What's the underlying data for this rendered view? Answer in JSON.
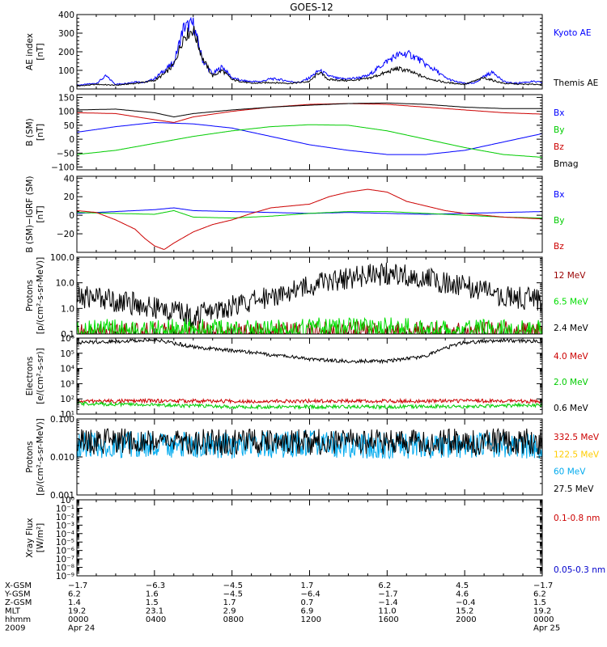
{
  "title": "GOES-12",
  "chart_data": [
    {
      "type": "line",
      "name": "ae",
      "ylabel_lines": [
        "AE index",
        "[nT]"
      ],
      "yscale": "linear",
      "ylim": [
        0,
        400
      ],
      "yticks": [
        0,
        100,
        200,
        300,
        400
      ],
      "ytick_labels": [
        "0",
        "100",
        "200",
        "300",
        "400"
      ],
      "series": [
        {
          "name": "Kyoto AE",
          "color": "#0000ff",
          "x": [
            0,
            0.5,
            1.0,
            1.5,
            2.0,
            2.5,
            3.0,
            3.5,
            4.0,
            4.5,
            5.0,
            5.5,
            6.0,
            6.5,
            7.0,
            7.5,
            8.0,
            8.5,
            9.0,
            9.5,
            10.0,
            10.5,
            11.0,
            11.5,
            12.0,
            12.5,
            13.0,
            13.5,
            14.0,
            14.5,
            15.0,
            15.5,
            16.0,
            16.5,
            17.0,
            17.5,
            18.0,
            18.5,
            19.0,
            19.5,
            20.0,
            20.5,
            21.0,
            21.5,
            22.0,
            22.5,
            23.0,
            23.5,
            24.0
          ],
          "y": [
            20,
            25,
            30,
            70,
            25,
            30,
            40,
            35,
            55,
            100,
            140,
            330,
            350,
            150,
            80,
            120,
            60,
            45,
            40,
            40,
            55,
            50,
            40,
            35,
            60,
            100,
            70,
            55,
            55,
            60,
            70,
            110,
            150,
            180,
            190,
            170,
            130,
            100,
            60,
            40,
            30,
            30,
            70,
            90,
            40,
            30,
            35,
            40,
            35
          ]
        },
        {
          "name": "Themis AE",
          "color": "#000000",
          "x": [
            0,
            1.0,
            2.0,
            3.0,
            4.0,
            4.5,
            5.0,
            5.5,
            6.0,
            6.5,
            7.0,
            7.5,
            8.0,
            9.0,
            10.0,
            11.0,
            12.0,
            12.5,
            13.0,
            14.0,
            15.0,
            16.0,
            16.5,
            17.0,
            18.0,
            19.0,
            20.0,
            21.0,
            22.0,
            23.0,
            24.0
          ],
          "y": [
            15,
            25,
            20,
            30,
            45,
            80,
            130,
            280,
            320,
            160,
            70,
            100,
            50,
            30,
            35,
            30,
            40,
            90,
            50,
            45,
            55,
            90,
            110,
            100,
            60,
            35,
            25,
            60,
            30,
            25,
            25
          ]
        }
      ]
    },
    {
      "type": "line",
      "name": "b-field",
      "ylabel_lines": [
        "B (SM)",
        "[nT]"
      ],
      "yscale": "linear",
      "ylim": [
        -110,
        160
      ],
      "yticks": [
        -100,
        -50,
        0,
        50,
        100,
        150
      ],
      "ytick_labels": [
        "−100",
        "−50",
        "0",
        "50",
        "100",
        "150"
      ],
      "series": [
        {
          "name": "Bx",
          "color": "#0000ff",
          "x": [
            0,
            2,
            4,
            6,
            8,
            10,
            12,
            14,
            16,
            18,
            20,
            22,
            24
          ],
          "y": [
            25,
            45,
            60,
            55,
            40,
            10,
            -20,
            -40,
            -55,
            -55,
            -40,
            -10,
            20
          ]
        },
        {
          "name": "By",
          "color": "#00cc00",
          "x": [
            0,
            2,
            4,
            6,
            8,
            10,
            12,
            14,
            16,
            18,
            20,
            22,
            24
          ],
          "y": [
            -55,
            -40,
            -15,
            10,
            30,
            45,
            52,
            50,
            30,
            0,
            -30,
            -55,
            -65
          ]
        },
        {
          "name": "Bz",
          "color": "#cc0000",
          "x": [
            0,
            2,
            4,
            5,
            6,
            8,
            10,
            12,
            14,
            16,
            18,
            20,
            22,
            24
          ],
          "y": [
            95,
            92,
            70,
            60,
            80,
            100,
            115,
            125,
            128,
            125,
            115,
            105,
            95,
            90
          ]
        },
        {
          "name": "Bmag",
          "color": "#000000",
          "x": [
            0,
            2,
            4,
            5,
            6,
            8,
            10,
            12,
            14,
            16,
            18,
            20,
            22,
            24
          ],
          "y": [
            105,
            108,
            95,
            80,
            92,
            105,
            115,
            122,
            128,
            130,
            125,
            115,
            110,
            110
          ]
        }
      ]
    },
    {
      "type": "line",
      "name": "b-residual",
      "ylabel_lines": [
        "B (SM)−IGRF (SM)",
        "[nT]"
      ],
      "yscale": "linear",
      "ylim": [
        -40,
        42
      ],
      "yticks": [
        -20,
        0,
        20,
        40
      ],
      "ytick_labels": [
        "−20",
        "0",
        "20",
        "40"
      ],
      "series": [
        {
          "name": "Bx",
          "color": "#0000ff",
          "x": [
            0,
            2,
            4,
            5,
            6,
            8,
            10,
            12,
            14,
            16,
            18,
            20,
            22,
            24
          ],
          "y": [
            2,
            4,
            6,
            8,
            5,
            4,
            3,
            2,
            3,
            2,
            1,
            2,
            3,
            4
          ]
        },
        {
          "name": "By",
          "color": "#00cc00",
          "x": [
            0,
            2,
            4,
            5,
            6,
            8,
            10,
            12,
            14,
            16,
            18,
            20,
            22,
            24
          ],
          "y": [
            3,
            2,
            1,
            5,
            -2,
            -3,
            -1,
            2,
            4,
            4,
            2,
            0,
            -2,
            -3
          ]
        },
        {
          "name": "Bz",
          "color": "#cc0000",
          "x": [
            0,
            1,
            2,
            3,
            3.5,
            4,
            4.5,
            5,
            6,
            7,
            8,
            9,
            10,
            11,
            12,
            13,
            14,
            15,
            16,
            17,
            18,
            19,
            20,
            21,
            22,
            23,
            24
          ],
          "y": [
            5,
            3,
            -5,
            -15,
            -25,
            -33,
            -37,
            -30,
            -18,
            -10,
            -5,
            2,
            8,
            10,
            12,
            20,
            25,
            28,
            25,
            15,
            10,
            5,
            2,
            0,
            -2,
            -3,
            -4
          ]
        }
      ]
    },
    {
      "type": "line",
      "name": "protons-low",
      "ylabel_lines": [
        "Protons",
        "[p/(cm²-s-sr-MeV)]"
      ],
      "yscale": "log",
      "ylim": [
        0.1,
        100
      ],
      "yticks": [
        0.1,
        1,
        10,
        100
      ],
      "ytick_labels": [
        "0.1",
        "1.0",
        "10.0",
        "100.0"
      ],
      "series": [
        {
          "name": "12 MeV",
          "color": "#990000",
          "x": [
            0,
            2,
            4,
            6,
            8,
            10,
            12,
            14,
            16,
            18,
            20,
            22,
            24
          ],
          "y": [
            0.1,
            0.11,
            0.1,
            0.12,
            0.1,
            0.11,
            0.1,
            0.12,
            0.1,
            0.11,
            0.1,
            0.12,
            0.1
          ]
        },
        {
          "name": "6.5 MeV",
          "color": "#00dd00",
          "x": [
            0,
            2,
            4,
            6,
            8,
            10,
            12,
            14,
            16,
            18,
            20,
            22,
            24
          ],
          "y": [
            0.13,
            0.14,
            0.13,
            0.15,
            0.13,
            0.14,
            0.16,
            0.15,
            0.16,
            0.15,
            0.14,
            0.13,
            0.13
          ]
        },
        {
          "name": "2.4 MeV",
          "color": "#000000",
          "x": [
            0,
            1,
            2,
            3,
            4,
            5,
            6,
            7,
            8,
            9,
            10,
            11,
            12,
            13,
            14,
            15,
            16,
            17,
            18,
            19,
            20,
            21,
            22,
            23,
            24
          ],
          "y": [
            2.5,
            3,
            2,
            1.5,
            1,
            0.8,
            0.5,
            0.8,
            1.2,
            1.8,
            3,
            5,
            8,
            12,
            16,
            20,
            22,
            20,
            15,
            10,
            7,
            5,
            3,
            2.5,
            2
          ]
        }
      ]
    },
    {
      "type": "line",
      "name": "electrons",
      "ylabel_lines": [
        "Electrons",
        "[e/(cm²-s-sr)]"
      ],
      "yscale": "log",
      "ylim": [
        10,
        1000000
      ],
      "yticks": [
        10,
        100,
        1000,
        10000,
        100000,
        1000000
      ],
      "ytick_labels": [
        "10¹",
        "10²",
        "10³",
        "10⁴",
        "10⁵",
        "10⁶"
      ],
      "series": [
        {
          "name": "4.0 MeV",
          "color": "#cc0000",
          "x": [
            0,
            4,
            8,
            12,
            16,
            20,
            24
          ],
          "y": [
            70,
            75,
            70,
            72,
            70,
            74,
            70
          ]
        },
        {
          "name": "2.0 MeV",
          "color": "#00cc00",
          "x": [
            0,
            4,
            8,
            12,
            16,
            20,
            24
          ],
          "y": [
            50,
            40,
            30,
            30,
            30,
            32,
            40
          ]
        },
        {
          "name": "0.6 MeV",
          "color": "#000000",
          "x": [
            0,
            2,
            4,
            5,
            6,
            8,
            10,
            12,
            14,
            16,
            18,
            19,
            20,
            22,
            24
          ],
          "y": [
            500000,
            600000,
            800000,
            450000,
            250000,
            150000,
            80000,
            40000,
            30000,
            30000,
            60000,
            200000,
            500000,
            700000,
            600000
          ]
        }
      ]
    },
    {
      "type": "line",
      "name": "protons-high",
      "ylabel_lines": [
        "Protons",
        "[p/(cm²-s-sr-MeV)]"
      ],
      "yscale": "log",
      "ylim": [
        0.001,
        0.1
      ],
      "yticks": [
        0.001,
        0.01,
        0.1
      ],
      "ytick_labels": [
        "0.001",
        "0.010",
        "0.100"
      ],
      "series": [
        {
          "name": "332.5 MeV",
          "color": "#cc0000",
          "x": [],
          "y": []
        },
        {
          "name": "122.5 MeV",
          "color": "#ffcc00",
          "x": [],
          "y": []
        },
        {
          "name": "60 MeV",
          "color": "#00aaee",
          "x": [
            0,
            4,
            8,
            12,
            16,
            20,
            24
          ],
          "y": [
            0.02,
            0.021,
            0.02,
            0.022,
            0.02,
            0.021,
            0.02
          ]
        },
        {
          "name": "27.5 MeV",
          "color": "#000000",
          "x": [
            0,
            4,
            8,
            12,
            16,
            20,
            24
          ],
          "y": [
            0.025,
            0.026,
            0.024,
            0.025,
            0.026,
            0.025,
            0.025
          ]
        }
      ]
    },
    {
      "type": "line",
      "name": "xray",
      "ylabel_lines": [
        "Xray Flux",
        "[W/m²]"
      ],
      "yscale": "log",
      "ylim": [
        1e-09,
        1
      ],
      "yticks": [
        1e-09,
        1e-08,
        1e-07,
        1e-06,
        1e-05,
        0.0001,
        0.001,
        0.01,
        0.1,
        1
      ],
      "ytick_labels": [
        "10⁻⁹",
        "10⁻⁸",
        "10⁻⁷",
        "10⁻⁶",
        "10⁻⁵",
        "10⁻⁴",
        "10⁻³",
        "10⁻²",
        "10⁻¹",
        "10⁰"
      ],
      "series": [
        {
          "name": "0.1-0.8 nm",
          "color": "#cc0000",
          "x": [],
          "y": []
        },
        {
          "name": "0.05-0.3 nm",
          "color": "#0000cc",
          "x": [],
          "y": []
        }
      ]
    }
  ],
  "xaxis": {
    "range": [
      0,
      24
    ],
    "major_ticks": [
      0,
      4,
      8,
      12,
      16,
      20,
      24
    ],
    "row_labels": [
      "X-GSM",
      "Y-GSM",
      "Z-GSM",
      "MLT",
      "hhmm",
      "2009"
    ],
    "columns": [
      [
        "−1.7",
        "6.2",
        "1.4",
        "19.2",
        "0000",
        "Apr 24"
      ],
      [
        "−6.3",
        "1.6",
        "1.5",
        "23.1",
        "0400",
        ""
      ],
      [
        "−4.5",
        "−4.5",
        "1.7",
        "2.9",
        "0800",
        ""
      ],
      [
        "1.7",
        "−6.4",
        "0.7",
        "6.9",
        "1200",
        ""
      ],
      [
        "6.2",
        "−1.7",
        "−1.4",
        "11.0",
        "1600",
        ""
      ],
      [
        "4.5",
        "4.6",
        "−0.4",
        "15.2",
        "2000",
        ""
      ],
      [
        "−1.7",
        "6.2",
        "1.5",
        "19.2",
        "0000",
        "Apr 25"
      ]
    ]
  }
}
